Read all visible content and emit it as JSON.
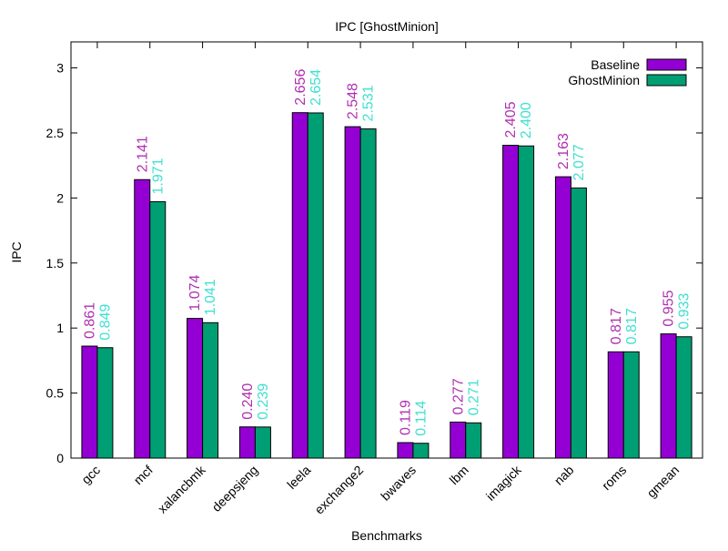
{
  "chart_data": {
    "type": "bar",
    "title": "IPC [GhostMinion]",
    "xlabel": "Benchmarks",
    "ylabel": "IPC",
    "ylim": [
      0,
      3.2
    ],
    "yticks": [
      "0",
      "0.5",
      "1",
      "1.5",
      "2",
      "2.5",
      "3"
    ],
    "grid": false,
    "legend_position": "top-right",
    "categories": [
      "gcc",
      "mcf",
      "xalancbmk",
      "deepsjeng",
      "leela",
      "exchange2",
      "bwaves",
      "lbm",
      "imagick",
      "nab",
      "roms",
      "gmean"
    ],
    "series": [
      {
        "name": "Baseline",
        "color": "#9400d3",
        "label_color": "#b030b0",
        "values": [
          0.861,
          2.141,
          1.074,
          0.24,
          2.656,
          2.548,
          0.119,
          0.277,
          2.405,
          2.163,
          0.817,
          0.955
        ],
        "labels": [
          "0.861",
          "2.141",
          "1.074",
          "0.240",
          "2.656",
          "2.548",
          "0.119",
          "0.277",
          "2.405",
          "2.163",
          "0.817",
          "0.955"
        ]
      },
      {
        "name": "GhostMinion",
        "color": "#009e73",
        "label_color": "#40e0d0",
        "values": [
          0.849,
          1.971,
          1.041,
          0.239,
          2.654,
          2.531,
          0.114,
          0.271,
          2.4,
          2.077,
          0.817,
          0.933
        ],
        "labels": [
          "0.849",
          "1.971",
          "1.041",
          "0.239",
          "2.654",
          "2.531",
          "0.114",
          "0.271",
          "2.400",
          "2.077",
          "0.817",
          "0.933"
        ]
      }
    ]
  }
}
